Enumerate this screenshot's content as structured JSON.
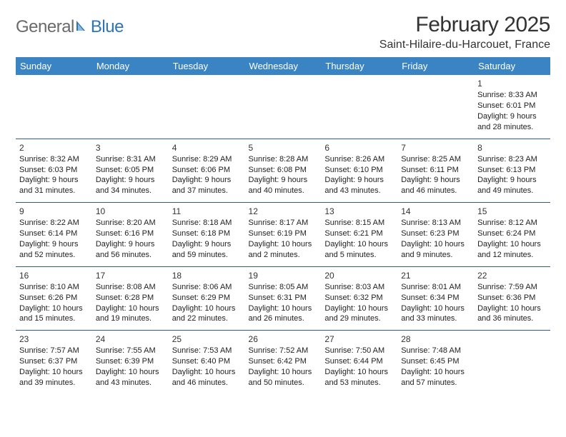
{
  "brand": {
    "part1": "General",
    "part2": "Blue"
  },
  "header": {
    "title": "February 2025",
    "location": "Saint-Hilaire-du-Harcouet, France"
  },
  "columns": [
    "Sunday",
    "Monday",
    "Tuesday",
    "Wednesday",
    "Thursday",
    "Friday",
    "Saturday"
  ],
  "colors": {
    "header_bg": "#3b84c4",
    "header_text": "#ffffff",
    "row_border": "#2f5b85",
    "brand_gray": "#6a6a6a",
    "brand_blue": "#2d74b8"
  },
  "weeks": [
    [
      null,
      null,
      null,
      null,
      null,
      null,
      {
        "n": "1",
        "sr": "Sunrise: 8:33 AM",
        "ss": "Sunset: 6:01 PM",
        "d1": "Daylight: 9 hours",
        "d2": "and 28 minutes."
      }
    ],
    [
      {
        "n": "2",
        "sr": "Sunrise: 8:32 AM",
        "ss": "Sunset: 6:03 PM",
        "d1": "Daylight: 9 hours",
        "d2": "and 31 minutes."
      },
      {
        "n": "3",
        "sr": "Sunrise: 8:31 AM",
        "ss": "Sunset: 6:05 PM",
        "d1": "Daylight: 9 hours",
        "d2": "and 34 minutes."
      },
      {
        "n": "4",
        "sr": "Sunrise: 8:29 AM",
        "ss": "Sunset: 6:06 PM",
        "d1": "Daylight: 9 hours",
        "d2": "and 37 minutes."
      },
      {
        "n": "5",
        "sr": "Sunrise: 8:28 AM",
        "ss": "Sunset: 6:08 PM",
        "d1": "Daylight: 9 hours",
        "d2": "and 40 minutes."
      },
      {
        "n": "6",
        "sr": "Sunrise: 8:26 AM",
        "ss": "Sunset: 6:10 PM",
        "d1": "Daylight: 9 hours",
        "d2": "and 43 minutes."
      },
      {
        "n": "7",
        "sr": "Sunrise: 8:25 AM",
        "ss": "Sunset: 6:11 PM",
        "d1": "Daylight: 9 hours",
        "d2": "and 46 minutes."
      },
      {
        "n": "8",
        "sr": "Sunrise: 8:23 AM",
        "ss": "Sunset: 6:13 PM",
        "d1": "Daylight: 9 hours",
        "d2": "and 49 minutes."
      }
    ],
    [
      {
        "n": "9",
        "sr": "Sunrise: 8:22 AM",
        "ss": "Sunset: 6:14 PM",
        "d1": "Daylight: 9 hours",
        "d2": "and 52 minutes."
      },
      {
        "n": "10",
        "sr": "Sunrise: 8:20 AM",
        "ss": "Sunset: 6:16 PM",
        "d1": "Daylight: 9 hours",
        "d2": "and 56 minutes."
      },
      {
        "n": "11",
        "sr": "Sunrise: 8:18 AM",
        "ss": "Sunset: 6:18 PM",
        "d1": "Daylight: 9 hours",
        "d2": "and 59 minutes."
      },
      {
        "n": "12",
        "sr": "Sunrise: 8:17 AM",
        "ss": "Sunset: 6:19 PM",
        "d1": "Daylight: 10 hours",
        "d2": "and 2 minutes."
      },
      {
        "n": "13",
        "sr": "Sunrise: 8:15 AM",
        "ss": "Sunset: 6:21 PM",
        "d1": "Daylight: 10 hours",
        "d2": "and 5 minutes."
      },
      {
        "n": "14",
        "sr": "Sunrise: 8:13 AM",
        "ss": "Sunset: 6:23 PM",
        "d1": "Daylight: 10 hours",
        "d2": "and 9 minutes."
      },
      {
        "n": "15",
        "sr": "Sunrise: 8:12 AM",
        "ss": "Sunset: 6:24 PM",
        "d1": "Daylight: 10 hours",
        "d2": "and 12 minutes."
      }
    ],
    [
      {
        "n": "16",
        "sr": "Sunrise: 8:10 AM",
        "ss": "Sunset: 6:26 PM",
        "d1": "Daylight: 10 hours",
        "d2": "and 15 minutes."
      },
      {
        "n": "17",
        "sr": "Sunrise: 8:08 AM",
        "ss": "Sunset: 6:28 PM",
        "d1": "Daylight: 10 hours",
        "d2": "and 19 minutes."
      },
      {
        "n": "18",
        "sr": "Sunrise: 8:06 AM",
        "ss": "Sunset: 6:29 PM",
        "d1": "Daylight: 10 hours",
        "d2": "and 22 minutes."
      },
      {
        "n": "19",
        "sr": "Sunrise: 8:05 AM",
        "ss": "Sunset: 6:31 PM",
        "d1": "Daylight: 10 hours",
        "d2": "and 26 minutes."
      },
      {
        "n": "20",
        "sr": "Sunrise: 8:03 AM",
        "ss": "Sunset: 6:32 PM",
        "d1": "Daylight: 10 hours",
        "d2": "and 29 minutes."
      },
      {
        "n": "21",
        "sr": "Sunrise: 8:01 AM",
        "ss": "Sunset: 6:34 PM",
        "d1": "Daylight: 10 hours",
        "d2": "and 33 minutes."
      },
      {
        "n": "22",
        "sr": "Sunrise: 7:59 AM",
        "ss": "Sunset: 6:36 PM",
        "d1": "Daylight: 10 hours",
        "d2": "and 36 minutes."
      }
    ],
    [
      {
        "n": "23",
        "sr": "Sunrise: 7:57 AM",
        "ss": "Sunset: 6:37 PM",
        "d1": "Daylight: 10 hours",
        "d2": "and 39 minutes."
      },
      {
        "n": "24",
        "sr": "Sunrise: 7:55 AM",
        "ss": "Sunset: 6:39 PM",
        "d1": "Daylight: 10 hours",
        "d2": "and 43 minutes."
      },
      {
        "n": "25",
        "sr": "Sunrise: 7:53 AM",
        "ss": "Sunset: 6:40 PM",
        "d1": "Daylight: 10 hours",
        "d2": "and 46 minutes."
      },
      {
        "n": "26",
        "sr": "Sunrise: 7:52 AM",
        "ss": "Sunset: 6:42 PM",
        "d1": "Daylight: 10 hours",
        "d2": "and 50 minutes."
      },
      {
        "n": "27",
        "sr": "Sunrise: 7:50 AM",
        "ss": "Sunset: 6:44 PM",
        "d1": "Daylight: 10 hours",
        "d2": "and 53 minutes."
      },
      {
        "n": "28",
        "sr": "Sunrise: 7:48 AM",
        "ss": "Sunset: 6:45 PM",
        "d1": "Daylight: 10 hours",
        "d2": "and 57 minutes."
      },
      null
    ]
  ]
}
